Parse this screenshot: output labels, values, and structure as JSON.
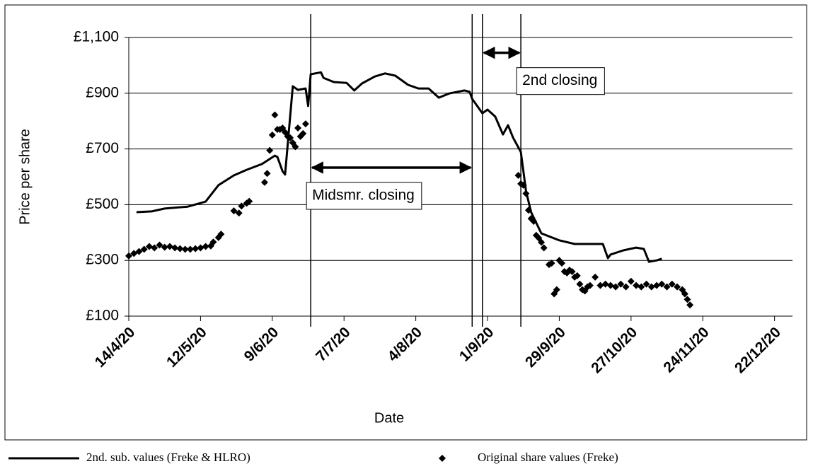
{
  "chart_data": {
    "type": "line",
    "x_label": "Date",
    "y_label": "Price per share",
    "xlim": [
      0,
      259
    ],
    "xticks": [
      {
        "value": 0,
        "label": "14/4/20"
      },
      {
        "value": 28,
        "label": "12/5/20"
      },
      {
        "value": 56,
        "label": "9/6/20"
      },
      {
        "value": 84,
        "label": "7/7/20"
      },
      {
        "value": 112,
        "label": "4/8/20"
      },
      {
        "value": 140,
        "label": "1/9/20"
      },
      {
        "value": 168,
        "label": "29/9/20"
      },
      {
        "value": 196,
        "label": "27/10/20"
      },
      {
        "value": 224,
        "label": "24/11/20"
      },
      {
        "value": 252,
        "label": "22/12/20"
      }
    ],
    "ylim": [
      100,
      1100
    ],
    "yticks": [
      {
        "value": 100,
        "label": "£100"
      },
      {
        "value": 300,
        "label": "£300"
      },
      {
        "value": 500,
        "label": "£500"
      },
      {
        "value": 700,
        "label": "£700"
      },
      {
        "value": 900,
        "label": "£900"
      },
      {
        "value": 1100,
        "label": "£1,100"
      }
    ],
    "grid": true,
    "legend": "bottom",
    "series": [
      {
        "name": "2nd. sub. values (Freke & HLRO)",
        "type": "line",
        "color": "#000000",
        "x": [
          3,
          9,
          14,
          23,
          30,
          35,
          41,
          46,
          52,
          57,
          58,
          60,
          61,
          64,
          66,
          69,
          70,
          70.5,
          71,
          75,
          76,
          80,
          85,
          88,
          91,
          96,
          100,
          104,
          109,
          113,
          117,
          121,
          125,
          131,
          133,
          134,
          138,
          140,
          143,
          146,
          148,
          150,
          153,
          155,
          157,
          161,
          168,
          174,
          185,
          187,
          188,
          193,
          198,
          201,
          203,
          206,
          208
        ],
        "values": [
          473,
          476,
          486,
          493,
          511,
          570,
          605,
          625,
          646,
          676,
          671,
          620,
          608,
          925,
          912,
          917,
          854,
          910,
          968,
          975,
          955,
          940,
          937,
          910,
          935,
          960,
          971,
          963,
          930,
          917,
          917,
          884,
          899,
          910,
          905,
          880,
          828,
          841,
          816,
          752,
          785,
          740,
          689,
          549,
          473,
          397,
          372,
          359,
          359,
          308,
          321,
          336,
          346,
          341,
          295,
          300,
          306
        ]
      },
      {
        "name": "Original share values (Freke)",
        "type": "scatter",
        "color": "#000000",
        "x": [
          0,
          2,
          4,
          6,
          8,
          10,
          12,
          14,
          16,
          18,
          20,
          22,
          24,
          26,
          28,
          30,
          32,
          33,
          35,
          36,
          41,
          43,
          44,
          46,
          47,
          53,
          54,
          55,
          56,
          57,
          58,
          59,
          60,
          61,
          62,
          63,
          64,
          65,
          66,
          67,
          68,
          69,
          152,
          153,
          154,
          155,
          156,
          157,
          158,
          159,
          160,
          161,
          162,
          164,
          165,
          166,
          167,
          168,
          169,
          170,
          171,
          172,
          173,
          174,
          175,
          176,
          177,
          178,
          179,
          180,
          182,
          184,
          186,
          188,
          190,
          192,
          194,
          196,
          198,
          200,
          202,
          204,
          206,
          208,
          210,
          212,
          214,
          216,
          217,
          218,
          219
        ],
        "values": [
          316,
          325,
          332,
          340,
          350,
          345,
          355,
          347,
          350,
          345,
          342,
          340,
          340,
          342,
          345,
          350,
          352,
          366,
          382,
          394,
          478,
          470,
          495,
          505,
          512,
          580,
          612,
          695,
          750,
          822,
          770,
          770,
          775,
          760,
          745,
          740,
          722,
          708,
          775,
          745,
          755,
          790,
          605,
          575,
          570,
          540,
          480,
          450,
          440,
          390,
          380,
          365,
          345,
          285,
          290,
          180,
          195,
          300,
          290,
          260,
          255,
          265,
          260,
          240,
          245,
          215,
          195,
          190,
          205,
          210,
          240,
          210,
          215,
          210,
          205,
          215,
          205,
          225,
          210,
          205,
          215,
          205,
          210,
          215,
          205,
          215,
          205,
          195,
          180,
          160,
          140
        ]
      }
    ],
    "annotations": [
      {
        "text": "Midsmr. closing",
        "start": 71,
        "end": 134,
        "y": 633
      },
      {
        "text": "2nd closing",
        "start": 138,
        "end": 153,
        "y": 1045
      }
    ]
  }
}
